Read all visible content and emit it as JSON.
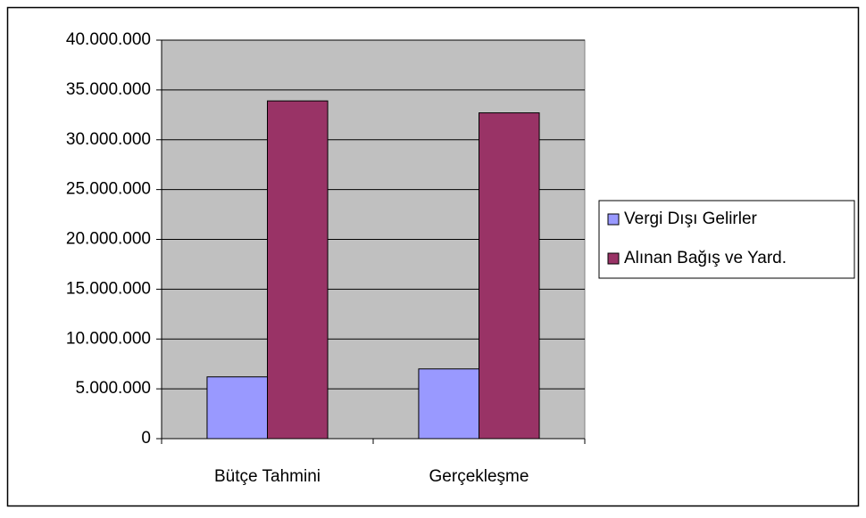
{
  "chart_data": {
    "type": "bar",
    "categories": [
      "Bütçe Tahmini",
      "Gerçekleşme"
    ],
    "series": [
      {
        "name": "Vergi Dışı Gelirler",
        "color": "#9999ff",
        "values": [
          6200000,
          7000000
        ]
      },
      {
        "name": "Alınan Bağış ve Yard.",
        "color": "#993366",
        "values": [
          33900000,
          32700000
        ]
      }
    ],
    "ylim": [
      0,
      40000000
    ],
    "yticks": [
      0,
      {
        "value": 5000000,
        "label": "5.000.000"
      },
      {
        "value": 10000000,
        "label": "10.000.000"
      },
      {
        "value": 15000000,
        "label": "15.000.000"
      },
      {
        "value": 20000000,
        "label": "20.000.000"
      },
      {
        "value": 25000000,
        "label": "25.000.000"
      },
      {
        "value": 30000000,
        "label": "30.000.000"
      },
      {
        "value": 35000000,
        "label": "35.000.000"
      },
      {
        "value": 40000000,
        "label": "40.000.000"
      }
    ],
    "grid": true,
    "plot_background": "#c0c0c0",
    "legend": "right"
  }
}
